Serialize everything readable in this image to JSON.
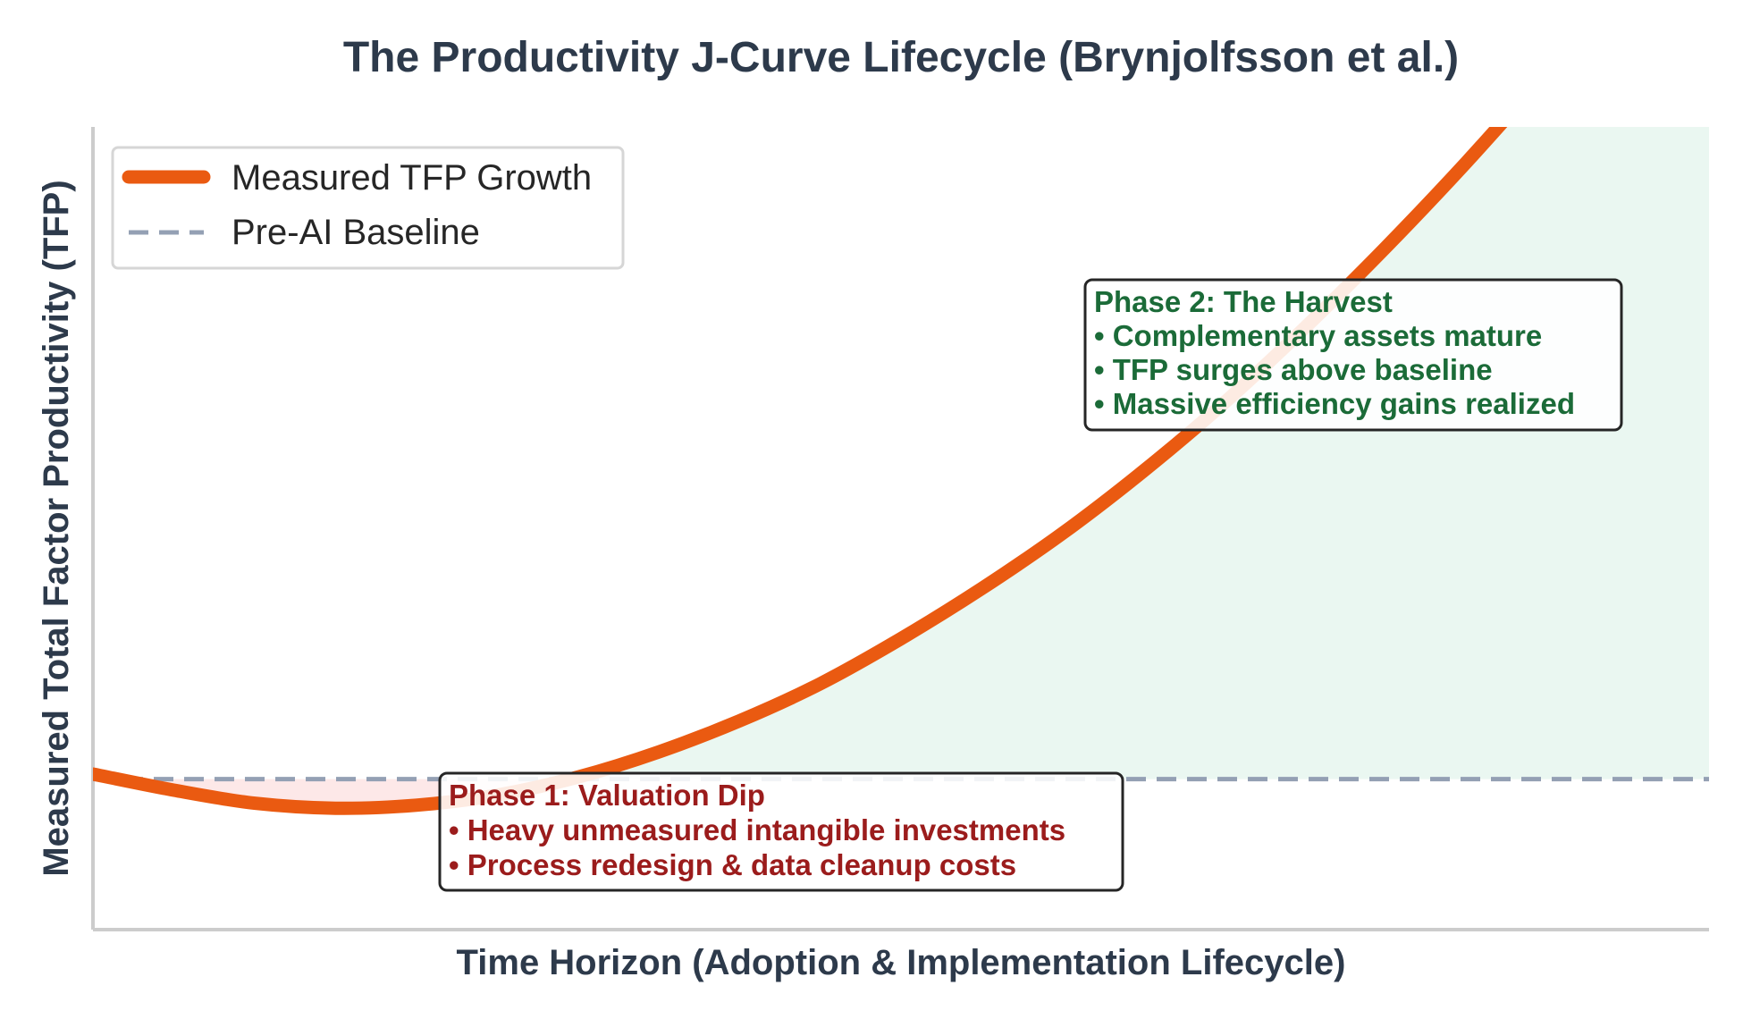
{
  "chart_data": {
    "type": "line",
    "title": "The Productivity J-Curve Lifecycle (Brynjolfsson et al.)",
    "xlabel": "Time Horizon (Adoption & Implementation Lifecycle)",
    "ylabel": "Measured Total Factor Productivity (TFP)",
    "xlim": [
      0,
      10
    ],
    "ylim": [
      -1.5,
      6.5
    ],
    "grid": false,
    "legend_position": "top-left",
    "series": [
      {
        "name": "Measured TFP Growth",
        "style": "solid",
        "color": "#ea5a11",
        "x": [
          0,
          0.5,
          1,
          1.5,
          2,
          2.5,
          3,
          3.5,
          4,
          4.5,
          5,
          5.5,
          6,
          6.5,
          7,
          7.5,
          8,
          8.5,
          9
        ],
        "y": [
          0.05,
          -0.11,
          -0.24,
          -0.29,
          -0.26,
          -0.16,
          0.02,
          0.27,
          0.58,
          0.95,
          1.4,
          1.9,
          2.45,
          3.07,
          3.75,
          4.5,
          5.3,
          6.15,
          7.05
        ]
      },
      {
        "name": "Pre-AI Baseline",
        "style": "dashed",
        "color": "#94a0b4",
        "x": [
          0,
          10
        ],
        "y": [
          0,
          0
        ]
      }
    ],
    "shaded_regions": [
      {
        "name": "loss-region",
        "color": "#fde8e8",
        "between": "curve-below-baseline"
      },
      {
        "name": "gain-region",
        "color": "#eaf7f1",
        "between": "curve-above-baseline"
      }
    ],
    "annotations": [
      {
        "name": "phase-1",
        "color": "#9b1c1c",
        "lines": [
          "Phase 1: Valuation Dip",
          "• Heavy unmeasured intangible investments",
          "• Process redesign & data cleanup costs"
        ]
      },
      {
        "name": "phase-2",
        "color": "#1b6b38",
        "lines": [
          "Phase 2: The Harvest",
          "• Complementary assets mature",
          "• TFP surges above baseline",
          "• Massive efficiency gains realized"
        ]
      }
    ]
  }
}
